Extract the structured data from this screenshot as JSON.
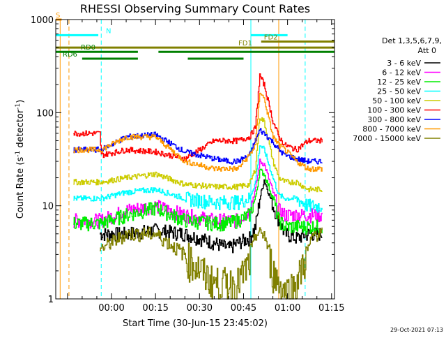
{
  "chart_data": {
    "type": "line",
    "title": "RHESSI Observing Summary Count Rates",
    "xlabel": "Start Time (30-Jun-15 23:45:02)",
    "ylabel_main": "Count Rate (s",
    "ylabel_sup1": "-1",
    "ylabel_mid": " detector",
    "ylabel_sup2": "-1",
    "ylabel_end": ")",
    "yscale": "log",
    "ylim": [
      1,
      1000
    ],
    "xlim_minutes": [
      -4,
      91
    ],
    "x_tick_labels": [
      "00:00",
      "00:15",
      "00:30",
      "00:45",
      "01:00",
      "01:15"
    ],
    "x_tick_minutes": [
      15,
      30,
      45,
      60,
      75,
      90
    ],
    "y_tick_labels": [
      "1",
      "10",
      "100",
      "1000"
    ],
    "y_tick_values": [
      1,
      10,
      100,
      1000
    ],
    "grid": false,
    "legend_placement": "right",
    "legend_header": [
      "Det 1,3,5,6,7,9,",
      "Att 0"
    ],
    "timestamp": "29-Oct-2021 07:13",
    "series": [
      {
        "name": "3 - 6 keV",
        "color": "#000000",
        "x": [
          2,
          11,
          11.5,
          20,
          30,
          40,
          50,
          55,
          58,
          62,
          64,
          65.5,
          67,
          70,
          72,
          74,
          78,
          82,
          84,
          87
        ],
        "y": [
          null,
          5,
          5,
          5,
          5.5,
          5,
          4,
          3.5,
          4,
          4.5,
          6,
          12,
          19,
          10,
          7,
          5,
          4.5,
          5,
          5,
          5
        ]
      },
      {
        "name": "6 - 12 keV",
        "color": "#ff00ff",
        "x": [
          2,
          11,
          11.5,
          20,
          30,
          40,
          50,
          55,
          58,
          62,
          64,
          65.5,
          67,
          70,
          72,
          74,
          78,
          82,
          84,
          87
        ],
        "y": [
          7,
          7,
          7,
          9,
          10,
          8,
          7,
          7,
          7,
          9,
          15,
          30,
          28,
          14,
          9,
          8,
          8,
          8,
          8,
          8
        ]
      },
      {
        "name": "12 - 25 keV",
        "color": "#00ee00",
        "x": [
          2,
          11,
          11.5,
          20,
          30,
          40,
          50,
          55,
          58,
          62,
          64,
          65.5,
          67,
          70,
          72,
          74,
          78,
          82,
          84,
          87
        ],
        "y": [
          6.5,
          6.5,
          6.5,
          8,
          9.5,
          7,
          6.5,
          6.5,
          7,
          8,
          12,
          24,
          22,
          12,
          7,
          6,
          6,
          6,
          6,
          6
        ]
      },
      {
        "name": "25 - 50 keV",
        "color": "#00ffff",
        "x": [
          2,
          11,
          11.5,
          20,
          30,
          40,
          50,
          55,
          58,
          62,
          64,
          65.5,
          67,
          70,
          72,
          74,
          78,
          82,
          84,
          87
        ],
        "y": [
          12,
          12,
          12,
          14,
          15,
          12,
          11,
          11,
          11,
          12,
          18,
          45,
          40,
          20,
          13,
          12,
          12,
          10,
          10,
          10
        ]
      },
      {
        "name": "50 - 100 keV",
        "color": "#cccc00",
        "x": [
          2,
          11,
          11.5,
          20,
          30,
          40,
          50,
          55,
          58,
          62,
          64,
          65.5,
          67,
          70,
          72,
          74,
          78,
          82,
          84,
          87
        ],
        "y": [
          18,
          18,
          18,
          20,
          22,
          17,
          16,
          16,
          16,
          17,
          25,
          90,
          80,
          30,
          20,
          18,
          18,
          15,
          15,
          15
        ]
      },
      {
        "name": "100 - 300 keV",
        "color": "#ff0000",
        "x": [
          2,
          11,
          11.5,
          20,
          30,
          40,
          50,
          55,
          58,
          62,
          64,
          65.5,
          67,
          70,
          72,
          74,
          78,
          82,
          84,
          87
        ],
        "y": [
          60,
          60,
          35,
          40,
          38,
          32,
          50,
          50,
          50,
          55,
          70,
          250,
          200,
          80,
          55,
          45,
          40,
          50,
          50,
          50
        ]
      },
      {
        "name": "300 - 800 keV",
        "color": "#0000ff",
        "x": [
          2,
          11,
          11.5,
          20,
          30,
          40,
          50,
          55,
          58,
          62,
          64,
          65.5,
          67,
          70,
          72,
          74,
          78,
          82,
          84,
          87
        ],
        "y": [
          40,
          40,
          40,
          55,
          58,
          38,
          32,
          30,
          30,
          35,
          50,
          65,
          60,
          48,
          40,
          35,
          32,
          30,
          30,
          30
        ]
      },
      {
        "name": "800 - 7000 keV",
        "color": "#ff9900",
        "x": [
          2,
          11,
          11.5,
          20,
          30,
          40,
          50,
          55,
          58,
          62,
          64,
          65.5,
          67,
          70,
          72,
          74,
          78,
          82,
          84,
          87
        ],
        "y": [
          40,
          40,
          40,
          55,
          55,
          30,
          25,
          25,
          25,
          35,
          45,
          170,
          140,
          55,
          45,
          40,
          30,
          25,
          25,
          25
        ]
      },
      {
        "name": "7000 - 15000 keV",
        "color": "#808000",
        "x": [
          2,
          11,
          11.5,
          20,
          30,
          40,
          50,
          55,
          58,
          62,
          64,
          65.5,
          67,
          70,
          72,
          74,
          78,
          82,
          84,
          87
        ],
        "y": [
          null,
          3.5,
          3.5,
          5,
          5,
          3,
          1.5,
          1.5,
          1.5,
          2.5,
          5,
          5,
          5,
          2,
          1.5,
          1.2,
          1.5,
          3.5,
          5,
          5
        ]
      }
    ],
    "state_bars": [
      {
        "label": "S",
        "color": "#ff9900",
        "segments": [
          [
            -4,
            -2
          ]
        ],
        "level": 1000
      },
      {
        "label": "N",
        "color": "#00ffff",
        "segments": [
          [
            -4,
            10.5
          ],
          [
            62.5,
            75
          ]
        ],
        "level": 680
      },
      {
        "label": "FD1",
        "color": "#808000",
        "segments": [
          [
            -4,
            91
          ]
        ],
        "level": 500
      },
      {
        "label": "FD2",
        "color": "#808000",
        "segments": [
          [
            66,
            91
          ]
        ],
        "level": 580
      },
      {
        "label": "RD0",
        "color": "#008000",
        "segments": [
          [
            -4,
            24
          ],
          [
            31,
            91
          ]
        ],
        "level": 450
      },
      {
        "label": "RD6",
        "color": "#008000",
        "segments": [
          [
            5,
            24
          ],
          [
            41,
            60
          ]
        ],
        "level": 380
      }
    ],
    "vlines": [
      {
        "x": -2.5,
        "color": "#ff9900",
        "style": "solid"
      },
      {
        "x": 0.5,
        "color": "#ff9900",
        "style": "dashed"
      },
      {
        "x": 11.5,
        "color": "#00ffff",
        "style": "dashed"
      },
      {
        "x": 62.5,
        "color": "#00ffff",
        "style": "solid"
      },
      {
        "x": 72,
        "color": "#ff9900",
        "style": "solid"
      },
      {
        "x": 81,
        "color": "#00ffff",
        "style": "dashed"
      }
    ]
  }
}
